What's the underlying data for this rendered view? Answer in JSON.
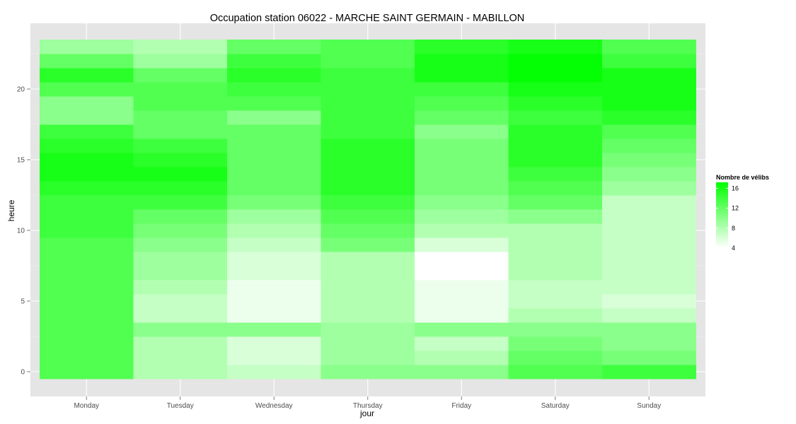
{
  "chart_data": {
    "type": "heatmap",
    "title": "Occupation station 06022 - MARCHE SAINT GERMAIN - MABILLON",
    "xlabel": "jour",
    "ylabel": "heure",
    "x_categories": [
      "Monday",
      "Tuesday",
      "Wednesday",
      "Thursday",
      "Friday",
      "Saturday",
      "Sunday"
    ],
    "y_hours": [
      0,
      1,
      2,
      3,
      4,
      5,
      6,
      7,
      8,
      9,
      10,
      11,
      12,
      13,
      14,
      15,
      16,
      17,
      18,
      19,
      20,
      21,
      22,
      23
    ],
    "y_ticks": [
      0,
      5,
      10,
      15,
      20
    ],
    "ylim": [
      -0.5,
      23.5
    ],
    "legend": {
      "title": "Nombre de vélibs",
      "ticks": [
        4,
        8,
        12,
        16
      ],
      "range": [
        4,
        17.2
      ],
      "low_color": "#ffffff",
      "high_color": "#00ff00",
      "position": "right"
    },
    "background": "#e5e5e5",
    "grid": true,
    "values": [
      [
        13,
        8,
        7,
        10,
        10,
        13,
        14
      ],
      [
        13,
        8,
        6,
        9,
        8,
        12,
        11
      ],
      [
        13,
        8,
        6,
        9,
        7,
        11,
        10
      ],
      [
        13,
        10,
        10,
        9,
        10,
        10,
        10
      ],
      [
        13,
        7,
        5,
        8,
        5,
        8,
        7
      ],
      [
        13,
        7,
        5,
        8,
        5,
        7,
        6
      ],
      [
        13,
        8,
        5,
        8,
        5,
        7,
        7
      ],
      [
        13,
        9,
        6,
        8,
        4,
        8,
        7
      ],
      [
        13,
        9,
        6,
        8,
        4,
        8,
        7
      ],
      [
        13,
        10,
        7,
        11,
        6,
        8,
        7
      ],
      [
        14,
        11,
        8,
        12,
        8,
        8,
        7
      ],
      [
        14,
        12,
        9,
        13,
        9,
        10,
        7
      ],
      [
        14,
        14,
        11,
        14,
        10,
        12,
        7
      ],
      [
        15,
        15,
        12,
        15,
        11,
        13,
        9
      ],
      [
        16,
        16,
        12,
        15,
        11,
        14,
        10
      ],
      [
        16,
        15,
        12,
        15,
        11,
        15,
        11
      ],
      [
        15,
        14,
        12,
        15,
        11,
        15,
        12
      ],
      [
        14,
        12,
        12,
        14,
        10,
        15,
        13
      ],
      [
        10,
        12,
        10,
        14,
        12,
        14,
        15
      ],
      [
        10,
        13,
        13,
        14,
        13,
        15,
        16
      ],
      [
        13,
        13,
        14,
        14,
        14,
        16,
        16
      ],
      [
        15,
        12,
        15,
        14,
        16,
        17,
        16
      ],
      [
        12,
        9,
        14,
        13,
        16,
        17,
        14
      ],
      [
        9,
        8,
        12,
        13,
        15,
        16,
        13
      ]
    ]
  }
}
